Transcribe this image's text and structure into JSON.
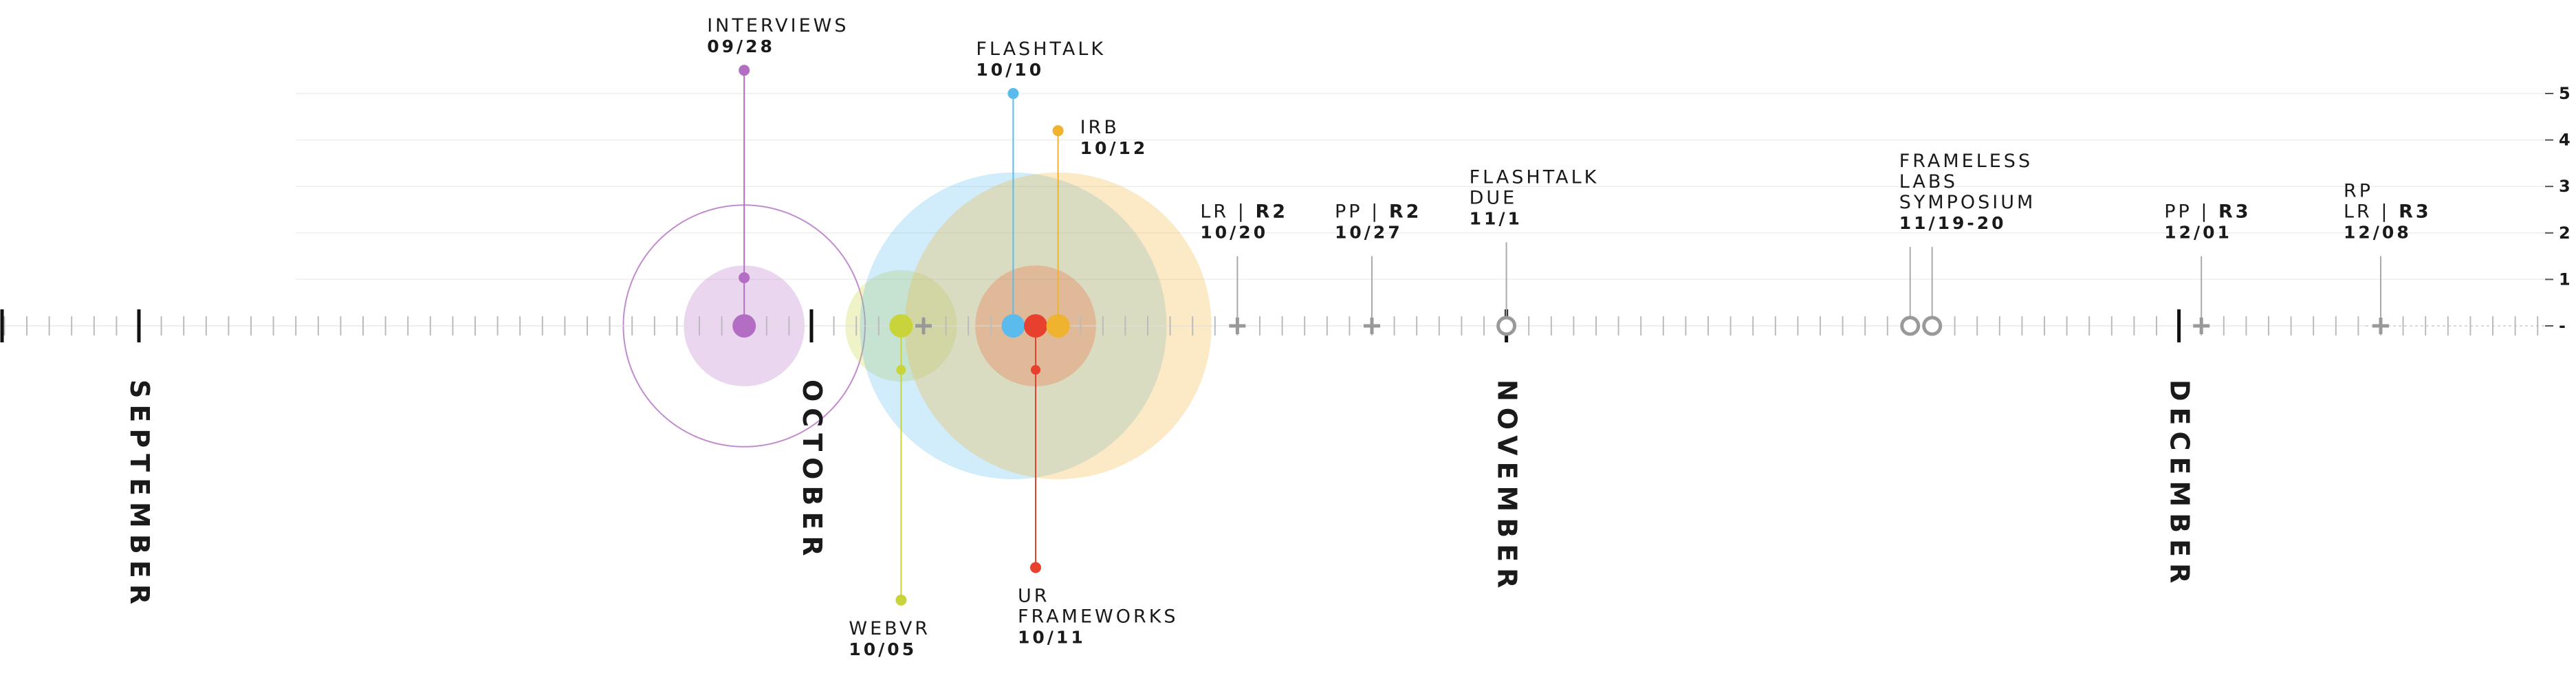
{
  "chart_data": {
    "type": "timeline",
    "y_ticks": [
      "5",
      "4",
      "3",
      "2",
      "1",
      "-"
    ],
    "ylim": [
      0,
      5
    ],
    "grid": true,
    "months": [
      {
        "name": "SEPTEMBER",
        "day": 1
      },
      {
        "name": "OCTOBER",
        "day": 31
      },
      {
        "name": "NOVEMBER",
        "day": 62
      },
      {
        "name": "DECEMBER",
        "day": 92
      }
    ],
    "events": [
      {
        "name": "INTERVIEWS",
        "date": "09/28",
        "day": 28,
        "stem": "up",
        "value": 5.5,
        "color": "#b36ec4",
        "symbol": "dot",
        "bubbles": [
          {
            "r": 2.6,
            "style": "outline"
          },
          {
            "r": 1.3,
            "style": "fill"
          }
        ]
      },
      {
        "name": "WEBVR",
        "date": "10/05",
        "day": 35,
        "stem": "down",
        "value": 5.9,
        "color": "#c9d43a",
        "symbol": "dot",
        "bubbles": [
          {
            "r": 1.2,
            "style": "fill"
          }
        ]
      },
      {
        "name": "FLASHTALK",
        "date": "10/10",
        "day": 40,
        "stem": "up",
        "value": 5.0,
        "color": "#5bbbec",
        "symbol": "dot",
        "bubbles": [
          {
            "r": 3.3,
            "style": "fill"
          }
        ]
      },
      {
        "name": "UR FRAMEWORKS",
        "date": "10/11",
        "day": 41,
        "stem": "down",
        "value": 5.2,
        "color": "#e8402e",
        "symbol": "dot",
        "bubbles": [
          {
            "r": 1.3,
            "style": "fill"
          }
        ]
      },
      {
        "name": "IRB",
        "date": "10/12",
        "day": 42,
        "stem": "up",
        "value": 4.2,
        "color": "#f0b330",
        "symbol": "dot",
        "bubbles": [
          {
            "r": 3.3,
            "style": "fill"
          }
        ]
      },
      {
        "name": "LR | R2",
        "date": "10/20",
        "day": 50,
        "stem": "up",
        "value": 1.5,
        "color": "#999999",
        "symbol": "plus",
        "bubbles": []
      },
      {
        "name": "PP | R2",
        "date": "10/27",
        "day": 56,
        "stem": "up",
        "value": 1.5,
        "color": "#999999",
        "symbol": "plus",
        "bubbles": []
      },
      {
        "name": "FLASHTALK DUE",
        "date": "11/1",
        "day": 62,
        "stem": "up",
        "value": 1.8,
        "color": "#999999",
        "symbol": "ring",
        "bubbles": []
      },
      {
        "name": "FRAMELESS LABS SYMPOSIUM",
        "date": "11/19-20",
        "day": 80.5,
        "stem": "up",
        "value": 1.7,
        "color": "#999999",
        "symbol": "double-ring",
        "bubbles": []
      },
      {
        "name": "PP | R3",
        "date": "12/01",
        "day": 93,
        "stem": "up",
        "value": 1.5,
        "color": "#999999",
        "symbol": "plus",
        "bubbles": []
      },
      {
        "name": "RP LR | R3",
        "date": "12/08",
        "day": 101,
        "stem": "up",
        "value": 1.5,
        "color": "#999999",
        "symbol": "plus",
        "bubbles": []
      }
    ],
    "extra_markers": [
      {
        "day": 36,
        "symbol": "plus",
        "color": "#999999"
      }
    ]
  }
}
